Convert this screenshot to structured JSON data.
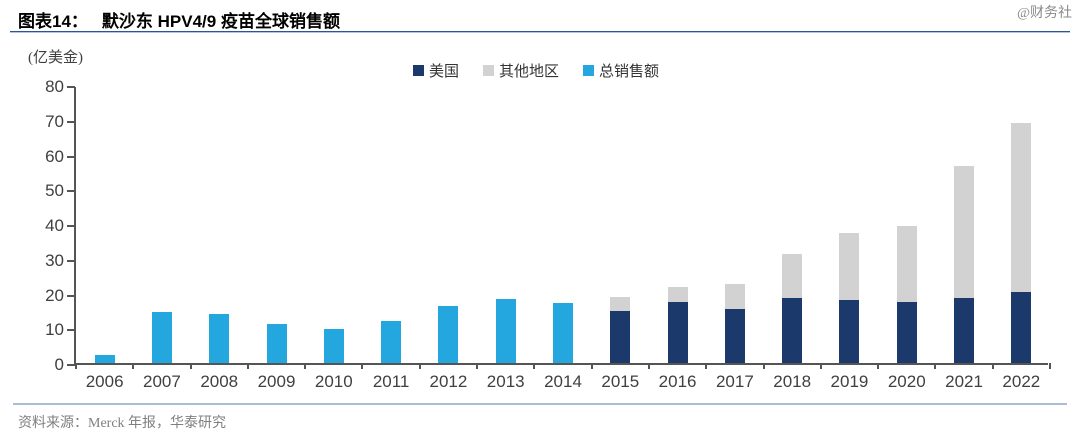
{
  "header": {
    "figure_label": "图表14：",
    "title": "默沙东 HPV4/9 疫苗全球销售额",
    "watermark": "@财务社"
  },
  "chart_data": {
    "type": "bar",
    "stacked": true,
    "title": "默沙东 HPV4/9 疫苗全球销售额",
    "unit_label": "(亿美金)",
    "xlabel": "",
    "ylabel": "亿美金",
    "ylim": [
      0,
      80
    ],
    "ytick_step": 10,
    "grid": false,
    "legend_position": "top-center",
    "categories": [
      "2006",
      "2007",
      "2008",
      "2009",
      "2010",
      "2011",
      "2012",
      "2013",
      "2014",
      "2015",
      "2016",
      "2017",
      "2018",
      "2019",
      "2020",
      "2021",
      "2022"
    ],
    "series": [
      {
        "name": "美国",
        "color": "#1b3a6b",
        "stack": "total",
        "values": [
          null,
          null,
          null,
          null,
          null,
          null,
          null,
          null,
          null,
          15.0,
          17.7,
          15.6,
          18.7,
          18.0,
          17.5,
          18.8,
          20.4
        ]
      },
      {
        "name": "其他地区",
        "color": "#d2d2d2",
        "stack": "total",
        "values": [
          null,
          null,
          null,
          null,
          null,
          null,
          null,
          null,
          null,
          4.0,
          4.2,
          7.1,
          12.8,
          19.5,
          22.0,
          37.9,
          48.6
        ]
      },
      {
        "name": "总销售额",
        "color": "#24a6df",
        "stack": null,
        "values": [
          2.4,
          14.8,
          14.0,
          11.2,
          9.9,
          12.1,
          16.3,
          18.3,
          17.4,
          null,
          null,
          null,
          null,
          null,
          null,
          null,
          null
        ]
      }
    ],
    "totals_by_year": [
      2.4,
      14.8,
      14.0,
      11.2,
      9.9,
      12.1,
      16.3,
      18.3,
      17.4,
      19.0,
      21.9,
      22.7,
      31.5,
      37.5,
      39.5,
      56.7,
      69.0
    ]
  },
  "axis": {
    "y_ticks": [
      "0",
      "10",
      "20",
      "30",
      "40",
      "50",
      "60",
      "70",
      "80"
    ]
  },
  "footer": {
    "source": "资料来源：Merck 年报，华泰研究"
  }
}
